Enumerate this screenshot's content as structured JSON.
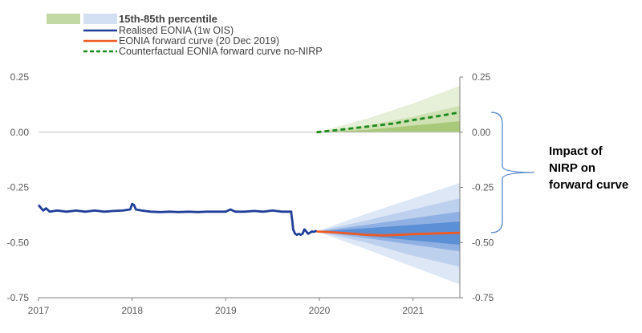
{
  "chart_data": {
    "type": "line",
    "title": "",
    "xlabel": "",
    "ylabel": "",
    "ylim": [
      -0.75,
      0.25
    ],
    "xlim": [
      2017,
      2021.5
    ],
    "x_ticks": [
      "2017",
      "2018",
      "2019",
      "2020",
      "2021"
    ],
    "y_ticks_left": [
      "0.25",
      "0.00",
      "-0.25",
      "-0.50",
      "-0.75"
    ],
    "y_ticks_right": [
      "0.25",
      "0.00",
      "-0.25",
      "-0.50",
      "-0.75"
    ],
    "legend": {
      "band_label": "15th-85th percentile",
      "realised_label": "Realised EONIA (1w OIS)",
      "forward_label": "EONIA forward curve (20 Dec 2019)",
      "counterfactual_label": "Counterfactual EONIA forward curve no-NIRP"
    },
    "annotation": {
      "line1": "Impact of",
      "line2": "NIRP on",
      "line3": "forward curve"
    },
    "colors": {
      "realised": "#1f3f99",
      "forward": "#f05a22",
      "counterfactual": "#1a8a1a",
      "green_band": "#a9c97a",
      "blue_band": "#5b8fd6",
      "bracket": "#4a7ec9"
    },
    "series": [
      {
        "name": "Realised EONIA (1w OIS)",
        "x": [
          2017.0,
          2017.02,
          2017.05,
          2017.08,
          2017.12,
          2017.2,
          2017.3,
          2017.4,
          2017.5,
          2017.6,
          2017.7,
          2017.8,
          2017.9,
          2017.98,
          2018.0,
          2018.02,
          2018.04,
          2018.1,
          2018.2,
          2018.3,
          2018.4,
          2018.5,
          2018.6,
          2018.7,
          2018.8,
          2018.9,
          2019.0,
          2019.05,
          2019.1,
          2019.2,
          2019.3,
          2019.4,
          2019.5,
          2019.6,
          2019.7,
          2019.7,
          2019.71,
          2019.72,
          2019.74,
          2019.76,
          2019.78,
          2019.8,
          2019.82,
          2019.84,
          2019.86,
          2019.88,
          2019.9,
          2019.92,
          2019.94,
          2019.96,
          2019.97
        ],
        "y": [
          -0.33,
          -0.34,
          -0.355,
          -0.345,
          -0.36,
          -0.355,
          -0.36,
          -0.355,
          -0.36,
          -0.355,
          -0.36,
          -0.357,
          -0.355,
          -0.35,
          -0.325,
          -0.33,
          -0.35,
          -0.355,
          -0.36,
          -0.362,
          -0.36,
          -0.362,
          -0.36,
          -0.362,
          -0.36,
          -0.36,
          -0.36,
          -0.35,
          -0.36,
          -0.36,
          -0.357,
          -0.36,
          -0.355,
          -0.36,
          -0.36,
          -0.37,
          -0.4,
          -0.44,
          -0.46,
          -0.465,
          -0.46,
          -0.465,
          -0.46,
          -0.44,
          -0.45,
          -0.46,
          -0.455,
          -0.45,
          -0.452,
          -0.448,
          -0.45
        ]
      },
      {
        "name": "EONIA forward curve (20 Dec 2019)",
        "x": [
          2019.97,
          2020.2,
          2020.5,
          2020.7,
          2021.0,
          2021.3,
          2021.5
        ],
        "y": [
          -0.45,
          -0.455,
          -0.465,
          -0.468,
          -0.462,
          -0.458,
          -0.456
        ]
      },
      {
        "name": "Counterfactual EONIA forward curve no-NIRP",
        "x": [
          2019.97,
          2020.2,
          2020.5,
          2020.8,
          2021.0,
          2021.3,
          2021.5
        ],
        "y": [
          0.0,
          0.01,
          0.025,
          0.04,
          0.055,
          0.075,
          0.09
        ]
      }
    ],
    "bands": {
      "x": [
        2019.97,
        2020.5,
        2021.0,
        2021.5
      ],
      "green_outer": {
        "upper": [
          0.0,
          0.06,
          0.13,
          0.21
        ],
        "lower": [
          0.0,
          0.0,
          0.0,
          0.0
        ]
      },
      "green_inner": {
        "upper": [
          0.0,
          0.03,
          0.07,
          0.12
        ],
        "lower": [
          0.0,
          0.0,
          0.0,
          0.0
        ]
      },
      "green_core": {
        "upper": [
          0.0,
          0.01,
          0.03,
          0.05
        ],
        "lower": [
          0.0,
          0.0,
          0.0,
          0.0
        ]
      },
      "blue_outer": {
        "upper": [
          -0.45,
          -0.37,
          -0.3,
          -0.23
        ],
        "lower": [
          -0.45,
          -0.53,
          -0.61,
          -0.69
        ]
      },
      "blue_mid": {
        "upper": [
          -0.45,
          -0.4,
          -0.35,
          -0.3
        ],
        "lower": [
          -0.45,
          -0.5,
          -0.56,
          -0.61
        ]
      },
      "blue_inner": {
        "upper": [
          -0.45,
          -0.42,
          -0.39,
          -0.36
        ],
        "lower": [
          -0.45,
          -0.48,
          -0.51,
          -0.54
        ]
      },
      "blue_core": {
        "upper": [
          -0.45,
          -0.435,
          -0.42,
          -0.405
        ],
        "lower": [
          -0.45,
          -0.47,
          -0.49,
          -0.51
        ]
      }
    },
    "bracket": {
      "y_top": 0.09,
      "y_bottom": -0.455
    }
  }
}
